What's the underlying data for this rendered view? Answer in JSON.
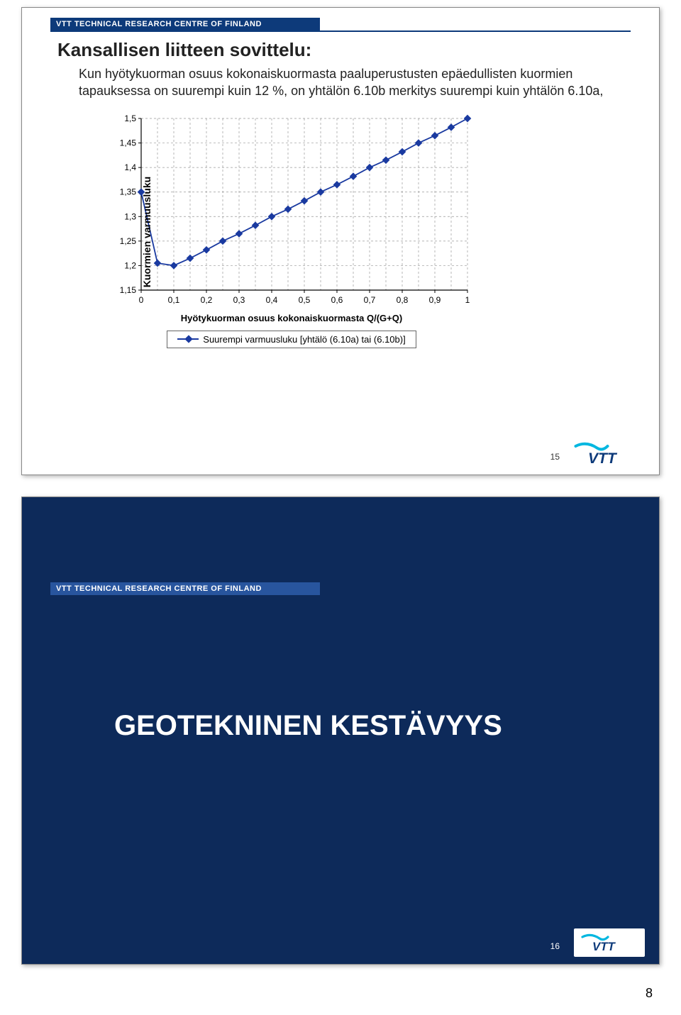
{
  "header_bar": "VTT TECHNICAL RESEARCH CENTRE OF FINLAND",
  "slide1": {
    "title": "Kansallisen liitteen sovittelu:",
    "body_line1": "Kun hyötykuorman osuus kokonaiskuormasta paaluperustusten epäedullisten kuormien tapauksessa on suurempi kuin 12 %, on yhtälön 6.10b merkitys suurempi kuin yhtälön 6.10a,",
    "slide_number": "15"
  },
  "chart": {
    "type": "line",
    "y_label": "Kuormien varmuusluku",
    "x_label": "Hyötykuorman osuus kokonaiskuormasta Q/(G+Q)",
    "legend": "Suurempi varmuusluku [yhtälö (6.10a) tai (6.10b)]",
    "x_ticks": [
      "0",
      "0,1",
      "0,2",
      "0,3",
      "0,4",
      "0,5",
      "0,6",
      "0,7",
      "0,8",
      "0,9",
      "1"
    ],
    "y_ticks": [
      "1,15",
      "1,2",
      "1,25",
      "1,3",
      "1,35",
      "1,4",
      "1,45",
      "1,5"
    ],
    "x_values": [
      0.0,
      0.05,
      0.1,
      0.15,
      0.2,
      0.25,
      0.3,
      0.35,
      0.4,
      0.45,
      0.5,
      0.55,
      0.6,
      0.65,
      0.7,
      0.75,
      0.8,
      0.85,
      0.9,
      0.95,
      1.0
    ],
    "y_values": [
      1.35,
      1.205,
      1.2,
      1.215,
      1.232,
      1.25,
      1.265,
      1.282,
      1.3,
      1.315,
      1.332,
      1.35,
      1.365,
      1.382,
      1.4,
      1.415,
      1.432,
      1.45,
      1.465,
      1.482,
      1.5
    ],
    "xlim": [
      0,
      1
    ],
    "ylim": [
      1.15,
      1.5
    ],
    "line_color": "#1a3aa0",
    "marker_style": "diamond",
    "marker_size": 6,
    "grid_color": "#999999",
    "axis_color": "#000000",
    "background_color": "#ffffff",
    "title_fontsize": 14,
    "label_fontsize": 13
  },
  "slide2": {
    "title": "GEOTEKNINEN KESTÄVYYS",
    "slide_number": "16"
  },
  "page_number": "8",
  "colors": {
    "vtt_blue_dark": "#0d3a7a",
    "vtt_blue_bg": "#0d2a5a",
    "line": "#1a3aa0",
    "cyan": "#00b7e0"
  },
  "logo_text": "VTT"
}
